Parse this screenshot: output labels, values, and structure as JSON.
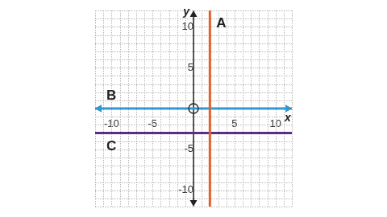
{
  "chart_data": {
    "type": "line",
    "xlim": [
      -12,
      12
    ],
    "ylim": [
      -12,
      12
    ],
    "xticks": [
      -10,
      -5,
      5,
      10
    ],
    "yticks": [
      -10,
      -5,
      5,
      10
    ],
    "x_label": "x",
    "y_label": "y",
    "grid": true,
    "series": [
      {
        "name": "A",
        "color": "#e0622a",
        "x": [
          2,
          2
        ],
        "values": [
          -12,
          12
        ]
      },
      {
        "name": "B",
        "color": "#2e9ad8",
        "x": [
          -12,
          12
        ],
        "values": [
          0,
          0
        ],
        "marker": "arrow"
      },
      {
        "name": "C",
        "color": "#5b2d86",
        "x": [
          -12,
          12
        ],
        "values": [
          -3,
          -3
        ]
      }
    ]
  }
}
